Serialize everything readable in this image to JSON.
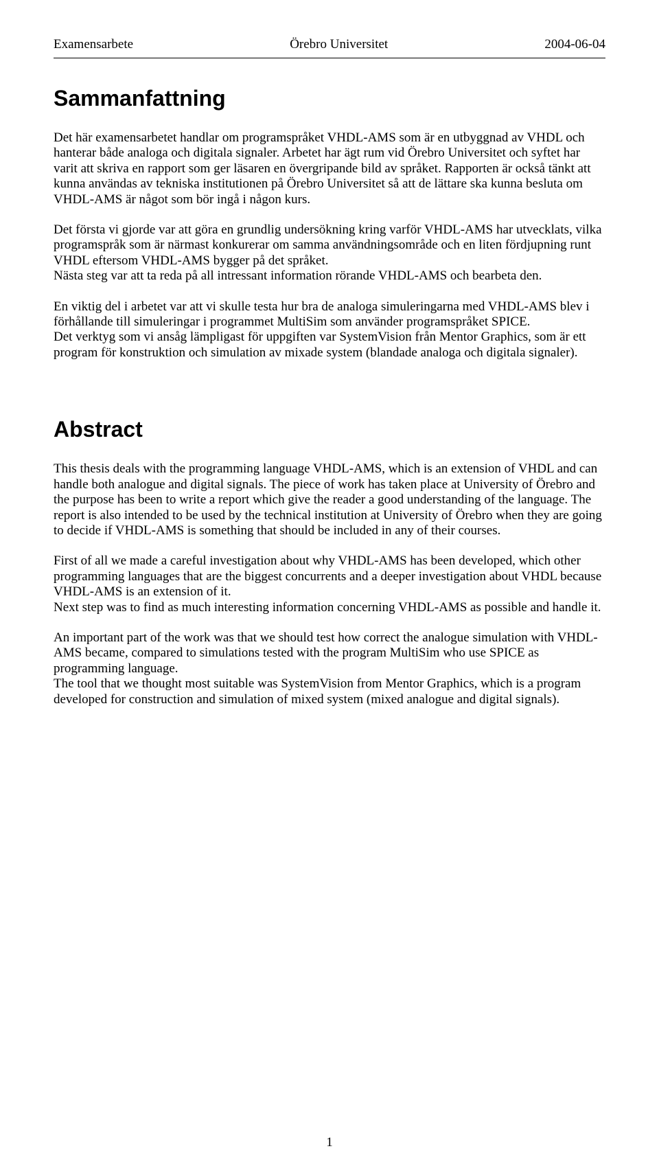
{
  "header": {
    "left": "Examensarbete",
    "center": "Örebro Universitet",
    "right": "2004-06-04"
  },
  "section1_title": "Sammanfattning",
  "section1_para1": "Det här examensarbetet handlar om programspråket VHDL-AMS som är en utbyggnad av VHDL och hanterar både analoga och digitala signaler. Arbetet har ägt rum vid Örebro Universitet och syftet har varit att skriva en rapport som ger läsaren en övergripande bild av språket. Rapporten är också tänkt att kunna användas av tekniska institutionen på Örebro Universitet så att de lättare ska kunna besluta om VHDL-AMS är något som bör ingå i någon kurs.",
  "section1_para2": "Det första vi gjorde var att göra en grundlig undersökning kring varför VHDL-AMS har utvecklats, vilka programspråk som är närmast konkurerar om samma användningsområde och en liten fördjupning runt VHDL eftersom VHDL-AMS bygger på det språket.\nNästa steg var att ta reda på all intressant information rörande VHDL-AMS och bearbeta den.",
  "section1_para3": "En viktig del i arbetet var att vi skulle testa hur bra de analoga simuleringarna med VHDL-AMS blev i förhållande till simuleringar i programmet MultiSim som använder programspråket SPICE.\nDet verktyg som vi ansåg lämpligast för uppgiften var SystemVision från Mentor Graphics, som är ett program för konstruktion och simulation av mixade system (blandade analoga och digitala signaler).",
  "section2_title": "Abstract",
  "section2_para1": "This thesis deals with the programming language VHDL-AMS, which is an extension of VHDL and can handle both analogue and digital signals. The piece of work has taken place at University of Örebro and the purpose has been to write a report which give the reader a good understanding of the language. The report is also intended to be used by the technical institution at University of Örebro when they are going to decide if VHDL-AMS is something that should be included in any of their courses.",
  "section2_para2": "First of all we made a careful investigation about why VHDL-AMS has been developed, which other programming languages that are the biggest concurrents and a deeper investigation about VHDL because VHDL-AMS is an extension of it.\nNext step was to find as much interesting information concerning VHDL-AMS as possible and handle it.",
  "section2_para3": "An important part of the work was that we should test how correct the analogue simulation with VHDL-AMS became, compared to simulations tested with the program MultiSim who use SPICE as programming language.\nThe tool that we thought most suitable was SystemVision from Mentor Graphics, which is a program developed for construction and simulation of mixed system (mixed analogue and digital signals).",
  "page_number": "1"
}
